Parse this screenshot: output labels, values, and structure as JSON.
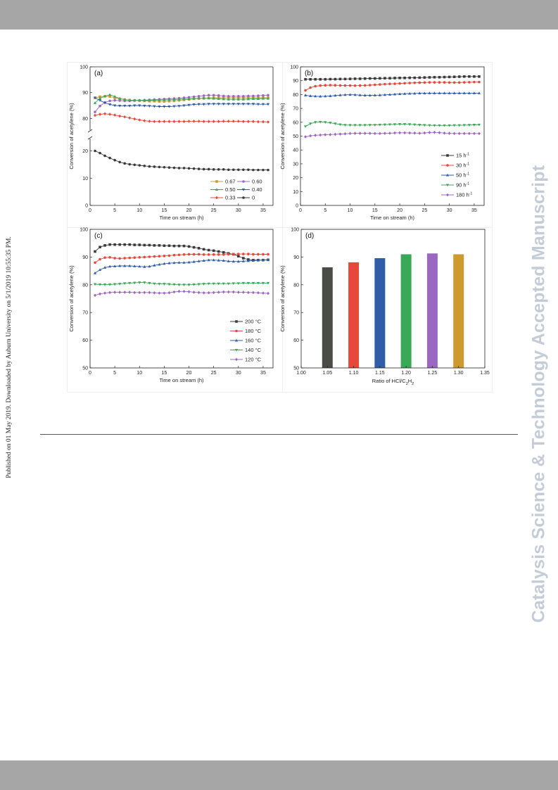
{
  "side_note": "Published on 01 May 2019. Downloaded by Auburn University on 5/1/2019 10:55:35 PM.",
  "watermark": "Catalysis Science & Technology Accepted Manuscript",
  "colors": {
    "black": "#3a3a3a",
    "red": "#e8473c",
    "blue": "#2f5da8",
    "green": "#39a857",
    "purple": "#9b67c2",
    "gold": "#cc9a2f",
    "dark": "#4a4d46"
  },
  "chart_data": [
    {
      "panel": "(a)",
      "type": "line",
      "xlabel": "Time on stream (h)",
      "ylabel": "Conversion of acetylene (%)",
      "xlim": [
        0,
        37
      ],
      "xticks": [
        "0",
        "5",
        "10",
        "15",
        "20",
        "25",
        "30",
        "35"
      ],
      "broken_axis": true,
      "upper_yticks": [
        "80",
        "90",
        "100"
      ],
      "lower_yticks": [
        "0",
        "10",
        "20"
      ],
      "x": [
        1,
        2,
        3,
        4,
        5,
        6,
        7,
        8,
        9,
        10,
        11,
        12,
        13,
        14,
        15,
        16,
        17,
        18,
        19,
        20,
        21,
        22,
        23,
        24,
        25,
        26,
        27,
        28,
        29,
        30,
        31,
        32,
        33,
        34,
        35,
        36
      ],
      "series": [
        {
          "name": "0.67",
          "color": "#cc9a2f",
          "values": [
            88,
            88.4,
            88.6,
            88.5,
            88,
            87.6,
            87.3,
            87.1,
            87,
            86.9,
            86.8,
            86.7,
            86.7,
            86.6,
            86.6,
            86.7,
            86.8,
            87,
            87.2,
            87.4,
            87.6,
            87.7,
            87.8,
            87.9,
            88,
            88,
            88,
            88,
            88,
            88,
            88,
            88,
            88,
            88,
            88,
            88
          ]
        },
        {
          "name": "0.60",
          "color": "#9b67c2",
          "values": [
            82.5,
            84.8,
            86.2,
            86.8,
            87,
            86.9,
            86.8,
            86.8,
            86.9,
            87,
            87.1,
            87.2,
            87.3,
            87.4,
            87.5,
            87.6,
            87.7,
            87.8,
            88,
            88.2,
            88.4,
            88.6,
            88.8,
            89,
            89,
            88.9,
            88.7,
            88.6,
            88.6,
            88.6,
            88.6,
            88.7,
            88.7,
            88.8,
            88.9,
            89
          ]
        },
        {
          "name": "0.50",
          "color": "#39a857",
          "values": [
            86,
            87.8,
            88.6,
            89.2,
            88.5,
            87.7,
            87.3,
            87.1,
            87,
            87,
            87,
            87,
            87.1,
            87.1,
            87.2,
            87.2,
            87.3,
            87.4,
            87.5,
            87.6,
            87.7,
            87.8,
            87.8,
            87.8,
            87.7,
            87.6,
            87.5,
            87.4,
            87.4,
            87.4,
            87.4,
            87.5,
            87.6,
            87.6,
            87.7,
            87.7
          ]
        },
        {
          "name": "0.40",
          "color": "#2f5da8",
          "values": [
            88,
            87,
            86,
            85.4,
            85,
            84.9,
            84.9,
            84.9,
            85,
            85,
            84.9,
            84.8,
            84.7,
            84.6,
            84.6,
            84.6,
            84.7,
            84.8,
            85,
            85.2,
            85.4,
            85.5,
            85.5,
            85.6,
            85.6,
            85.6,
            85.6,
            85.6,
            85.6,
            85.6,
            85.6,
            85.6,
            85.6,
            85.5,
            85.5,
            85.5
          ]
        },
        {
          "name": "0.33",
          "color": "#e8473c",
          "values": [
            81.2,
            81.6,
            81.8,
            81.6,
            81.3,
            80.9,
            80.6,
            80.2,
            79.8,
            79.4,
            79.1,
            78.9,
            78.8,
            78.8,
            78.8,
            78.8,
            78.8,
            78.8,
            78.8,
            78.9,
            78.9,
            78.9,
            78.8,
            78.8,
            78.8,
            78.8,
            78.9,
            78.9,
            78.9,
            78.9,
            78.8,
            78.8,
            78.8,
            78.7,
            78.7,
            78.6
          ]
        },
        {
          "name": "0",
          "color": "#3a3a3a",
          "values": [
            20,
            19.2,
            18.2,
            17.4,
            16.6,
            15.9,
            15.4,
            15.1,
            14.9,
            14.7,
            14.5,
            14.3,
            14.2,
            14.1,
            14,
            13.9,
            13.8,
            13.7,
            13.7,
            13.6,
            13.5,
            13.4,
            13.3,
            13.3,
            13.2,
            13.2,
            13.2,
            13.1,
            13.1,
            13.1,
            13.1,
            13.1,
            13,
            13,
            13,
            13
          ]
        }
      ]
    },
    {
      "panel": "(b)",
      "type": "line",
      "xlabel": "Time on stream (h)",
      "ylabel": "Conversion of acetylene (%)",
      "xlim": [
        0,
        37
      ],
      "ylim": [
        0,
        100
      ],
      "xticks": [
        "0",
        "5",
        "10",
        "15",
        "20",
        "25",
        "30",
        "35"
      ],
      "yticks": [
        "0",
        "10",
        "20",
        "30",
        "40",
        "50",
        "60",
        "70",
        "80",
        "90",
        "100"
      ],
      "x": [
        1,
        2,
        3,
        4,
        5,
        6,
        7,
        8,
        9,
        10,
        11,
        12,
        13,
        14,
        15,
        16,
        17,
        18,
        19,
        20,
        21,
        22,
        23,
        24,
        25,
        26,
        27,
        28,
        29,
        30,
        31,
        32,
        33,
        34,
        35,
        36
      ],
      "series": [
        {
          "name": "15 h",
          "sup": "-1",
          "color": "#3a3a3a",
          "values": [
            91,
            91,
            91,
            91,
            91,
            91.1,
            91.1,
            91.2,
            91.2,
            91.3,
            91.4,
            91.4,
            91.5,
            91.6,
            91.6,
            91.7,
            91.8,
            91.8,
            91.9,
            92,
            92,
            92.1,
            92.1,
            92.2,
            92.3,
            92.4,
            92.5,
            92.5,
            92.6,
            92.7,
            92.8,
            92.9,
            93,
            93,
            93,
            93
          ]
        },
        {
          "name": "30 h",
          "sup": "-1",
          "color": "#e8473c",
          "values": [
            83,
            85,
            86,
            86.5,
            86.7,
            86.8,
            86.7,
            86.6,
            86.5,
            86.5,
            86.4,
            86.5,
            86.6,
            86.8,
            87,
            87.3,
            87.5,
            87.7,
            87.8,
            88,
            88.2,
            88.3,
            88.5,
            88.6,
            88.7,
            88.8,
            88.8,
            88.8,
            88.8,
            88.7,
            88.7,
            88.7,
            88.8,
            88.9,
            89,
            89
          ]
        },
        {
          "name": "50 h",
          "sup": "-1",
          "color": "#2f5da8",
          "values": [
            79.5,
            79,
            78.8,
            78.7,
            78.8,
            79,
            79.3,
            79.6,
            79.8,
            79.9,
            79.8,
            79.6,
            79.4,
            79.4,
            79.5,
            79.6,
            79.8,
            80,
            80.2,
            80.4,
            80.6,
            80.7,
            80.8,
            80.9,
            80.9,
            81,
            81,
            81,
            81,
            81,
            81,
            81,
            81,
            81,
            81,
            81
          ]
        },
        {
          "name": "90 h",
          "sup": "-1",
          "color": "#39a857",
          "values": [
            57,
            59,
            60,
            60.2,
            60,
            59.6,
            59,
            58.4,
            58,
            57.9,
            57.9,
            57.9,
            57.9,
            58,
            58,
            58.2,
            58.3,
            58.4,
            58.5,
            58.6,
            58.6,
            58.5,
            58.3,
            58.1,
            57.9,
            57.8,
            57.7,
            57.7,
            57.7,
            57.7,
            57.8,
            57.8,
            57.9,
            58,
            58.1,
            58.2
          ]
        },
        {
          "name": "180 h",
          "sup": "-1",
          "color": "#9b67c2",
          "values": [
            49.5,
            50.2,
            50.6,
            50.8,
            51,
            51.1,
            51.3,
            51.5,
            51.7,
            51.9,
            52,
            52,
            52,
            52,
            51.9,
            51.9,
            52,
            52.1,
            52.3,
            52.4,
            52.4,
            52.3,
            52.2,
            52.1,
            52.3,
            52.6,
            52.7,
            52.5,
            52.2,
            52,
            51.9,
            51.9,
            51.9,
            51.9,
            51.9,
            51.9
          ]
        }
      ]
    },
    {
      "panel": "(c)",
      "type": "line",
      "xlabel": "Time on stream (h)",
      "ylabel": "Conversion of acetylene (%)",
      "xlim": [
        0,
        37
      ],
      "ylim": [
        50,
        100
      ],
      "xticks": [
        "0",
        "5",
        "10",
        "15",
        "20",
        "25",
        "30",
        "35"
      ],
      "yticks": [
        "50",
        "60",
        "70",
        "80",
        "90",
        "100"
      ],
      "x": [
        1,
        2,
        3,
        4,
        5,
        6,
        7,
        8,
        9,
        10,
        11,
        12,
        13,
        14,
        15,
        16,
        17,
        18,
        19,
        20,
        21,
        22,
        23,
        24,
        25,
        26,
        27,
        28,
        29,
        30,
        31,
        32,
        33,
        34,
        35,
        36
      ],
      "series": [
        {
          "name": "200 °C",
          "color": "#3a3a3a",
          "values": [
            92,
            93.6,
            94.2,
            94.5,
            94.5,
            94.5,
            94.5,
            94.5,
            94.4,
            94.4,
            94.3,
            94.3,
            94.2,
            94.2,
            94.1,
            94.1,
            94,
            94,
            94,
            93.8,
            93.5,
            93.2,
            92.8,
            92.5,
            92.3,
            92,
            91.7,
            91.3,
            91,
            90.3,
            89.6,
            89.1,
            88.9,
            88.9,
            88.9,
            89
          ]
        },
        {
          "name": "180 °C",
          "color": "#e8473c",
          "values": [
            88,
            89.2,
            89.8,
            89.9,
            89.6,
            89.5,
            89.6,
            89.7,
            89.8,
            89.9,
            90,
            90.1,
            90.2,
            90.3,
            90.4,
            90.5,
            90.7,
            90.8,
            90.9,
            91,
            91,
            91,
            90.9,
            90.9,
            90.9,
            90.9,
            90.9,
            91,
            91,
            91.1,
            91.1,
            91.1,
            91,
            91,
            91,
            91
          ]
        },
        {
          "name": "160 °C",
          "color": "#2f5da8",
          "values": [
            84.2,
            85.4,
            86.2,
            86.6,
            86.7,
            86.8,
            86.8,
            86.8,
            86.7,
            86.6,
            86.5,
            86.6,
            87,
            87.3,
            87.6,
            87.8,
            87.9,
            88,
            88,
            88.1,
            88.3,
            88.5,
            88.7,
            88.9,
            88.9,
            88.8,
            88.7,
            88.5,
            88.4,
            88.4,
            88.5,
            88.6,
            88.7,
            88.8,
            88.9,
            89
          ]
        },
        {
          "name": "140 °C",
          "color": "#39a857",
          "values": [
            80.2,
            80.1,
            80.1,
            80.1,
            80.2,
            80.3,
            80.5,
            80.6,
            80.7,
            80.8,
            80.8,
            80.6,
            80.4,
            80.3,
            80.3,
            80.2,
            80.1,
            80,
            80,
            80,
            80.1,
            80.2,
            80.3,
            80.4,
            80.4,
            80.4,
            80.4,
            80.4,
            80.5,
            80.5,
            80.6,
            80.6,
            80.6,
            80.6,
            80.6,
            80.6
          ]
        },
        {
          "name": "120 °C",
          "color": "#9b67c2",
          "values": [
            76.2,
            76.7,
            77,
            77.2,
            77.3,
            77.3,
            77.3,
            77.3,
            77.2,
            77.2,
            77.2,
            77.2,
            77.1,
            77,
            77,
            77.1,
            77.4,
            77.6,
            77.6,
            77.5,
            77.3,
            77.2,
            77.1,
            77.1,
            77.2,
            77.3,
            77.4,
            77.4,
            77.4,
            77.3,
            77.3,
            77.2,
            77.2,
            77.1,
            77,
            76.9
          ]
        }
      ]
    },
    {
      "panel": "(d)",
      "type": "bar",
      "xlabel": "Ratio of HCl/C",
      "xlabel_sub": [
        "2",
        "2"
      ],
      "xlabel_h": "H",
      "ylabel": "Conversion of acetylene (%)",
      "xlim": [
        1.0,
        1.35
      ],
      "ylim": [
        50,
        100
      ],
      "xticks": [
        "1.00",
        "1.05",
        "1.10",
        "1.15",
        "1.20",
        "1.25",
        "1.30",
        "1.35"
      ],
      "yticks": [
        "50",
        "60",
        "70",
        "80",
        "90",
        "100"
      ],
      "categories": [
        1.05,
        1.1,
        1.15,
        1.2,
        1.25,
        1.3
      ],
      "values": [
        86.3,
        88.1,
        89.6,
        91.0,
        91.3,
        91.0
      ],
      "colors": [
        "#4a4d46",
        "#e8473c",
        "#2f5da8",
        "#39a857",
        "#9b67c2",
        "#cc9a2f"
      ]
    }
  ]
}
